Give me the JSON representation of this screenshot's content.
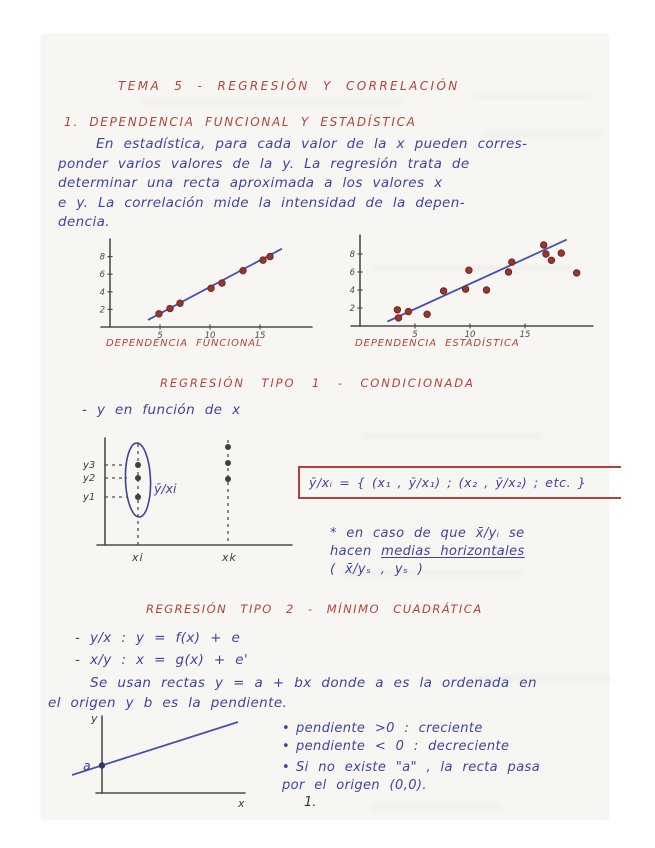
{
  "colors": {
    "paper": "#f8f6f2",
    "ink_blue": "#3e43a0",
    "ink_red": "#b2433b",
    "dot_red": "#99362e",
    "line_blue": "#4a50b0",
    "axis_gray": "#4c4c4c",
    "dot_dark": "#454545"
  },
  "page": {
    "title": "TEMA 5 - REGRESIÓN Y CORRELACIÓN",
    "heading_dependencia": "1. DEPENDENCIA FUNCIONAL Y ESTADÍSTICA",
    "intro_lines": [
      "En estadística, para cada valor de la x pueden corres-",
      "ponder varios valores de la y. La regresión trata de",
      "determinar una recta aproximada a los valores x",
      "e y. La correlación mide la intensidad de la depen-",
      "dencia."
    ],
    "section_tipo1": {
      "heading": "REGRESIÓN TIPO 1 - CONDICIONADA",
      "subline": "- y en función de x",
      "formula": "ȳ/xᵢ = { (x₁ , ȳ/x₁) ; (x₂ , ȳ/x₂) ; etc. }",
      "note_line1": "* en caso de que  x̄/yᵢ  se",
      "note_line2_prefix": "hacen ",
      "note_line2_underlined": "medias horizontales",
      "note_line3": "( x̄/yₛ , yₛ )"
    },
    "section_tipo2": {
      "heading": "REGRESIÓN TIPO 2 - MÍNIMO CUADRÁTICA",
      "line_yx": "- y/x  :   y = f(x) + e",
      "line_xy": "- x/y  :   x = g(x) + e'",
      "body_lines": [
        "Se usan rectas   y = a + bx    donde  a  es la ordenada en",
        "el origen  y  b  es la pendiente."
      ],
      "bullets": [
        {
          "text": "pendiente >0  :  creciente"
        },
        {
          "text": "pendiente < 0  :  decreciente"
        },
        {
          "text": "Si no existe \"a\" ,  la recta pasa"
        },
        {
          "text": "por el origen  (0,0)."
        }
      ]
    },
    "page_number": "1."
  },
  "chart_data": [
    {
      "type": "scatter",
      "caption": "DEPENDENCIA  FUNCIONAL",
      "xlim": [
        0,
        20
      ],
      "ylim": [
        0,
        9.5
      ],
      "x_ticks": [
        5,
        10,
        15
      ],
      "y_ticks": [
        2,
        4,
        6,
        8
      ],
      "points": [
        [
          4.9,
          1.5
        ],
        [
          6,
          2.1
        ],
        [
          7,
          2.7
        ],
        [
          10.1,
          4.4
        ],
        [
          11.2,
          5
        ],
        [
          13.3,
          6.4
        ],
        [
          15.3,
          7.6
        ],
        [
          16,
          8
        ]
      ],
      "fit_line": [
        [
          3.8,
          0.8
        ],
        [
          17.2,
          8.9
        ]
      ],
      "grid": false
    },
    {
      "type": "scatter",
      "caption": "DEPENDENCIA  ESTADÍSTICA",
      "xlim": [
        0,
        21
      ],
      "ylim": [
        0,
        10.5
      ],
      "x_ticks": [
        5,
        10,
        15
      ],
      "y_ticks": [
        2,
        4,
        6,
        8
      ],
      "points": [
        [
          3.4,
          1.8
        ],
        [
          4.4,
          1.6
        ],
        [
          3.5,
          0.9
        ],
        [
          6.1,
          1.3
        ],
        [
          7.6,
          3.9
        ],
        [
          9.6,
          4.1
        ],
        [
          9.9,
          6.2
        ],
        [
          11.5,
          4
        ],
        [
          13.5,
          6
        ],
        [
          13.8,
          7.1
        ],
        [
          16.7,
          9
        ],
        [
          16.9,
          8
        ],
        [
          17.4,
          7.3
        ],
        [
          18.3,
          8.1
        ],
        [
          19.7,
          5.9
        ]
      ],
      "fit_line": [
        [
          2.5,
          0.5
        ],
        [
          18.8,
          9.6
        ]
      ],
      "grid": false
    },
    {
      "type": "diagram-columns",
      "x_labels": [
        "xi",
        "xk"
      ],
      "y_labels": [
        "y3",
        "y2",
        "y1"
      ],
      "annotation": "ȳ/xi",
      "dots_per_column": [
        3,
        3
      ]
    },
    {
      "type": "diagram-line",
      "y_label": "y",
      "x_label": "x",
      "intercept_label": "a",
      "slope": "positive"
    }
  ]
}
